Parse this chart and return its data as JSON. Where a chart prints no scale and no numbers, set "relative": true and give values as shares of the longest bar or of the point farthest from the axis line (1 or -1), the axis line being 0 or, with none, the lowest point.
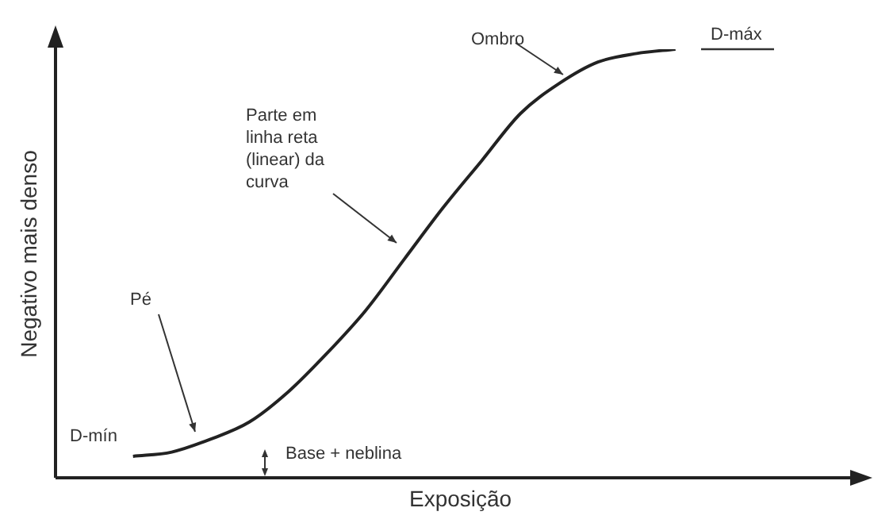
{
  "chart_data": {
    "type": "line",
    "relative": true,
    "xlabel": "Exposição",
    "ylabel": "Negativo mais denso",
    "categories": [
      null,
      null,
      null,
      null,
      null,
      null,
      null,
      null,
      null,
      null,
      null,
      null,
      null,
      null,
      null,
      null,
      null,
      null,
      null,
      null,
      null,
      null
    ],
    "series": [
      {
        "color": "#222222",
        "values": [
          null,
          null,
          0.05,
          0.06,
          0.09,
          0.13,
          0.2,
          0.29,
          0.39,
          0.51,
          0.63,
          0.74,
          0.85,
          0.92,
          0.97,
          0.99,
          1,
          null,
          null,
          null,
          null,
          null
        ]
      }
    ],
    "annotations": [
      "Ombro",
      "D-máx",
      "Parte em linha reta (linear) da curva",
      "Pé",
      "D-mín",
      "Base + neblina"
    ],
    "legend": false,
    "marker": "none",
    "line_style": "solid"
  }
}
